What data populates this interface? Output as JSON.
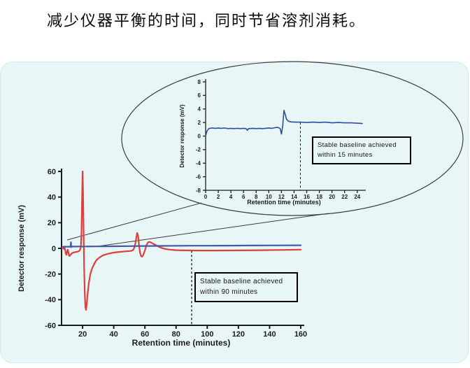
{
  "title": "减少仪器平衡的时间，同时节省溶剂消耗。",
  "colors": {
    "panel_bg": "#e9f6f7",
    "axis": "#1d1d1d",
    "callout_line": "#3c3c3c",
    "red_trace": "#dd4038",
    "blue_trace": "#4159ab",
    "inset_trace": "#2f4d9e"
  },
  "chart_data": [
    {
      "id": "main-chart",
      "type": "line",
      "title": "",
      "xlabel": "Retention time (minutes)",
      "ylabel": "Detector response (mV)",
      "xlim": [
        6.5,
        160
      ],
      "ylim": [
        -60,
        60
      ],
      "xticks": [
        20,
        40,
        60,
        80,
        100,
        120,
        140,
        160
      ],
      "yticks": [
        60,
        40,
        20,
        0,
        -20,
        -40,
        -60
      ],
      "grid": false,
      "legend": "none",
      "annotation": {
        "line1": "Stable baseline achieved",
        "line2": "within 90 minutes",
        "dash_x": 90,
        "dash_y_from": -1.8,
        "dash_y_to": -60
      },
      "series": [
        {
          "name": "red",
          "color": "#dd4038",
          "points": [
            [
              7,
              0.5
            ],
            [
              7.5,
              1
            ],
            [
              8,
              -0.5
            ],
            [
              8.3,
              1.5
            ],
            [
              8.8,
              -1
            ],
            [
              9.2,
              -4
            ],
            [
              9.6,
              -5
            ],
            [
              10,
              -3
            ],
            [
              10.4,
              -1
            ],
            [
              10.8,
              -2.5
            ],
            [
              11.2,
              -5.5
            ],
            [
              11.6,
              -6
            ],
            [
              12.2,
              -5
            ],
            [
              13,
              -4
            ],
            [
              14,
              -3.2
            ],
            [
              15,
              -3
            ],
            [
              16,
              -2.8
            ],
            [
              17,
              -2.5
            ],
            [
              17.8,
              -2
            ],
            [
              18.4,
              -1
            ],
            [
              18.9,
              1
            ],
            [
              19.3,
              12
            ],
            [
              19.7,
              40
            ],
            [
              20,
              60
            ],
            [
              20.3,
              45
            ],
            [
              20.7,
              10
            ],
            [
              21,
              -15
            ],
            [
              21.4,
              -35
            ],
            [
              21.8,
              -46
            ],
            [
              22.2,
              -48
            ],
            [
              22.7,
              -43
            ],
            [
              23.3,
              -35
            ],
            [
              24,
              -27
            ],
            [
              25,
              -20
            ],
            [
              26,
              -16
            ],
            [
              27.5,
              -12
            ],
            [
              29,
              -9
            ],
            [
              31,
              -7
            ],
            [
              33,
              -5.5
            ],
            [
              36,
              -4.3
            ],
            [
              39,
              -3.5
            ],
            [
              42,
              -3
            ],
            [
              45,
              -2.6
            ],
            [
              48,
              -2.3
            ],
            [
              51,
              -2
            ],
            [
              52.5,
              -1.2
            ],
            [
              53.5,
              1.5
            ],
            [
              54.3,
              7
            ],
            [
              55,
              12
            ],
            [
              55.6,
              10
            ],
            [
              56.2,
              3
            ],
            [
              56.8,
              -3
            ],
            [
              57.5,
              -6
            ],
            [
              58.2,
              -6.5
            ],
            [
              59,
              -5
            ],
            [
              60,
              -1.5
            ],
            [
              61,
              2.5
            ],
            [
              62,
              4.8
            ],
            [
              63,
              5
            ],
            [
              64,
              4.5
            ],
            [
              65.5,
              3.5
            ],
            [
              67,
              2.5
            ],
            [
              69,
              1.2
            ],
            [
              71,
              0.2
            ],
            [
              73,
              -0.5
            ],
            [
              76,
              -1
            ],
            [
              80,
              -1.4
            ],
            [
              86,
              -1.6
            ],
            [
              95,
              -1.7
            ],
            [
              105,
              -1.7
            ],
            [
              120,
              -1.6
            ],
            [
              135,
              -1.4
            ],
            [
              150,
              -1.2
            ],
            [
              160,
              -1
            ]
          ]
        },
        {
          "name": "blue",
          "color": "#4159ab",
          "points": [
            [
              7,
              1.2
            ],
            [
              8.5,
              1.3
            ],
            [
              10,
              1.3
            ],
            [
              11.5,
              1.3
            ],
            [
              12.3,
              1.3
            ],
            [
              12.5,
              4.8
            ],
            [
              12.7,
              0.9
            ],
            [
              13,
              1.4
            ],
            [
              15,
              1.4
            ],
            [
              18,
              1.45
            ],
            [
              22,
              1.5
            ],
            [
              27,
              1.55
            ],
            [
              33,
              1.6
            ],
            [
              40,
              1.65
            ],
            [
              50,
              1.75
            ],
            [
              60,
              1.85
            ],
            [
              70,
              1.9
            ],
            [
              80,
              2
            ],
            [
              90,
              2.05
            ],
            [
              100,
              2.1
            ],
            [
              110,
              2.15
            ],
            [
              120,
              2.2
            ],
            [
              130,
              2.25
            ],
            [
              140,
              2.3
            ],
            [
              150,
              2.35
            ],
            [
              160,
              2.4
            ]
          ]
        }
      ]
    },
    {
      "id": "inset-chart",
      "type": "line",
      "title": "",
      "xlabel": "Retention time (minutes)",
      "ylabel": "Detector response (mV)",
      "xlim": [
        0,
        24.8
      ],
      "ylim": [
        -8,
        8
      ],
      "xticks": [
        0,
        2,
        4,
        6,
        8,
        10,
        12,
        14,
        16,
        18,
        20,
        22,
        24
      ],
      "yticks": [
        8,
        6,
        4,
        2,
        0,
        -2,
        -4,
        -6,
        -8
      ],
      "grid": false,
      "legend": "none",
      "annotation": {
        "line1": "Stable baseline achieved",
        "line2": "within 15 minutes",
        "dash_x": 15,
        "dash_y_from": 2,
        "dash_y_to": -8
      },
      "series": [
        {
          "name": "blue",
          "color": "#2f4d9e",
          "points": [
            [
              0,
              0
            ],
            [
              0.2,
              0.7
            ],
            [
              0.5,
              1.1
            ],
            [
              1,
              1.2
            ],
            [
              1.5,
              1.15
            ],
            [
              2,
              1.2
            ],
            [
              2.5,
              1.15
            ],
            [
              3,
              1.2
            ],
            [
              3.5,
              1.1
            ],
            [
              4,
              1.15
            ],
            [
              4.5,
              1.1
            ],
            [
              5,
              1.15
            ],
            [
              5.5,
              1.1
            ],
            [
              6,
              1.15
            ],
            [
              6.4,
              1.1
            ],
            [
              6.6,
              0.85
            ],
            [
              6.8,
              1.1
            ],
            [
              7.5,
              1.15
            ],
            [
              8,
              1.1
            ],
            [
              8.5,
              1.15
            ],
            [
              9,
              1.1
            ],
            [
              9.5,
              1.15
            ],
            [
              10,
              1.2
            ],
            [
              10.5,
              1.15
            ],
            [
              11,
              1.25
            ],
            [
              11.4,
              1.3
            ],
            [
              11.8,
              1.1
            ],
            [
              12,
              0.3
            ],
            [
              12.2,
              1.5
            ],
            [
              12.4,
              3.8
            ],
            [
              12.6,
              3.2
            ],
            [
              12.8,
              2.5
            ],
            [
              13.1,
              2.2
            ],
            [
              13.5,
              2.1
            ],
            [
              14,
              2.05
            ],
            [
              15,
              2.05
            ],
            [
              16,
              2
            ],
            [
              17,
              2.05
            ],
            [
              18,
              2
            ],
            [
              19,
              2.05
            ],
            [
              20,
              1.95
            ],
            [
              21,
              2
            ],
            [
              22,
              1.95
            ],
            [
              23,
              1.95
            ],
            [
              24,
              1.9
            ],
            [
              24.8,
              1.85
            ]
          ]
        }
      ]
    }
  ]
}
